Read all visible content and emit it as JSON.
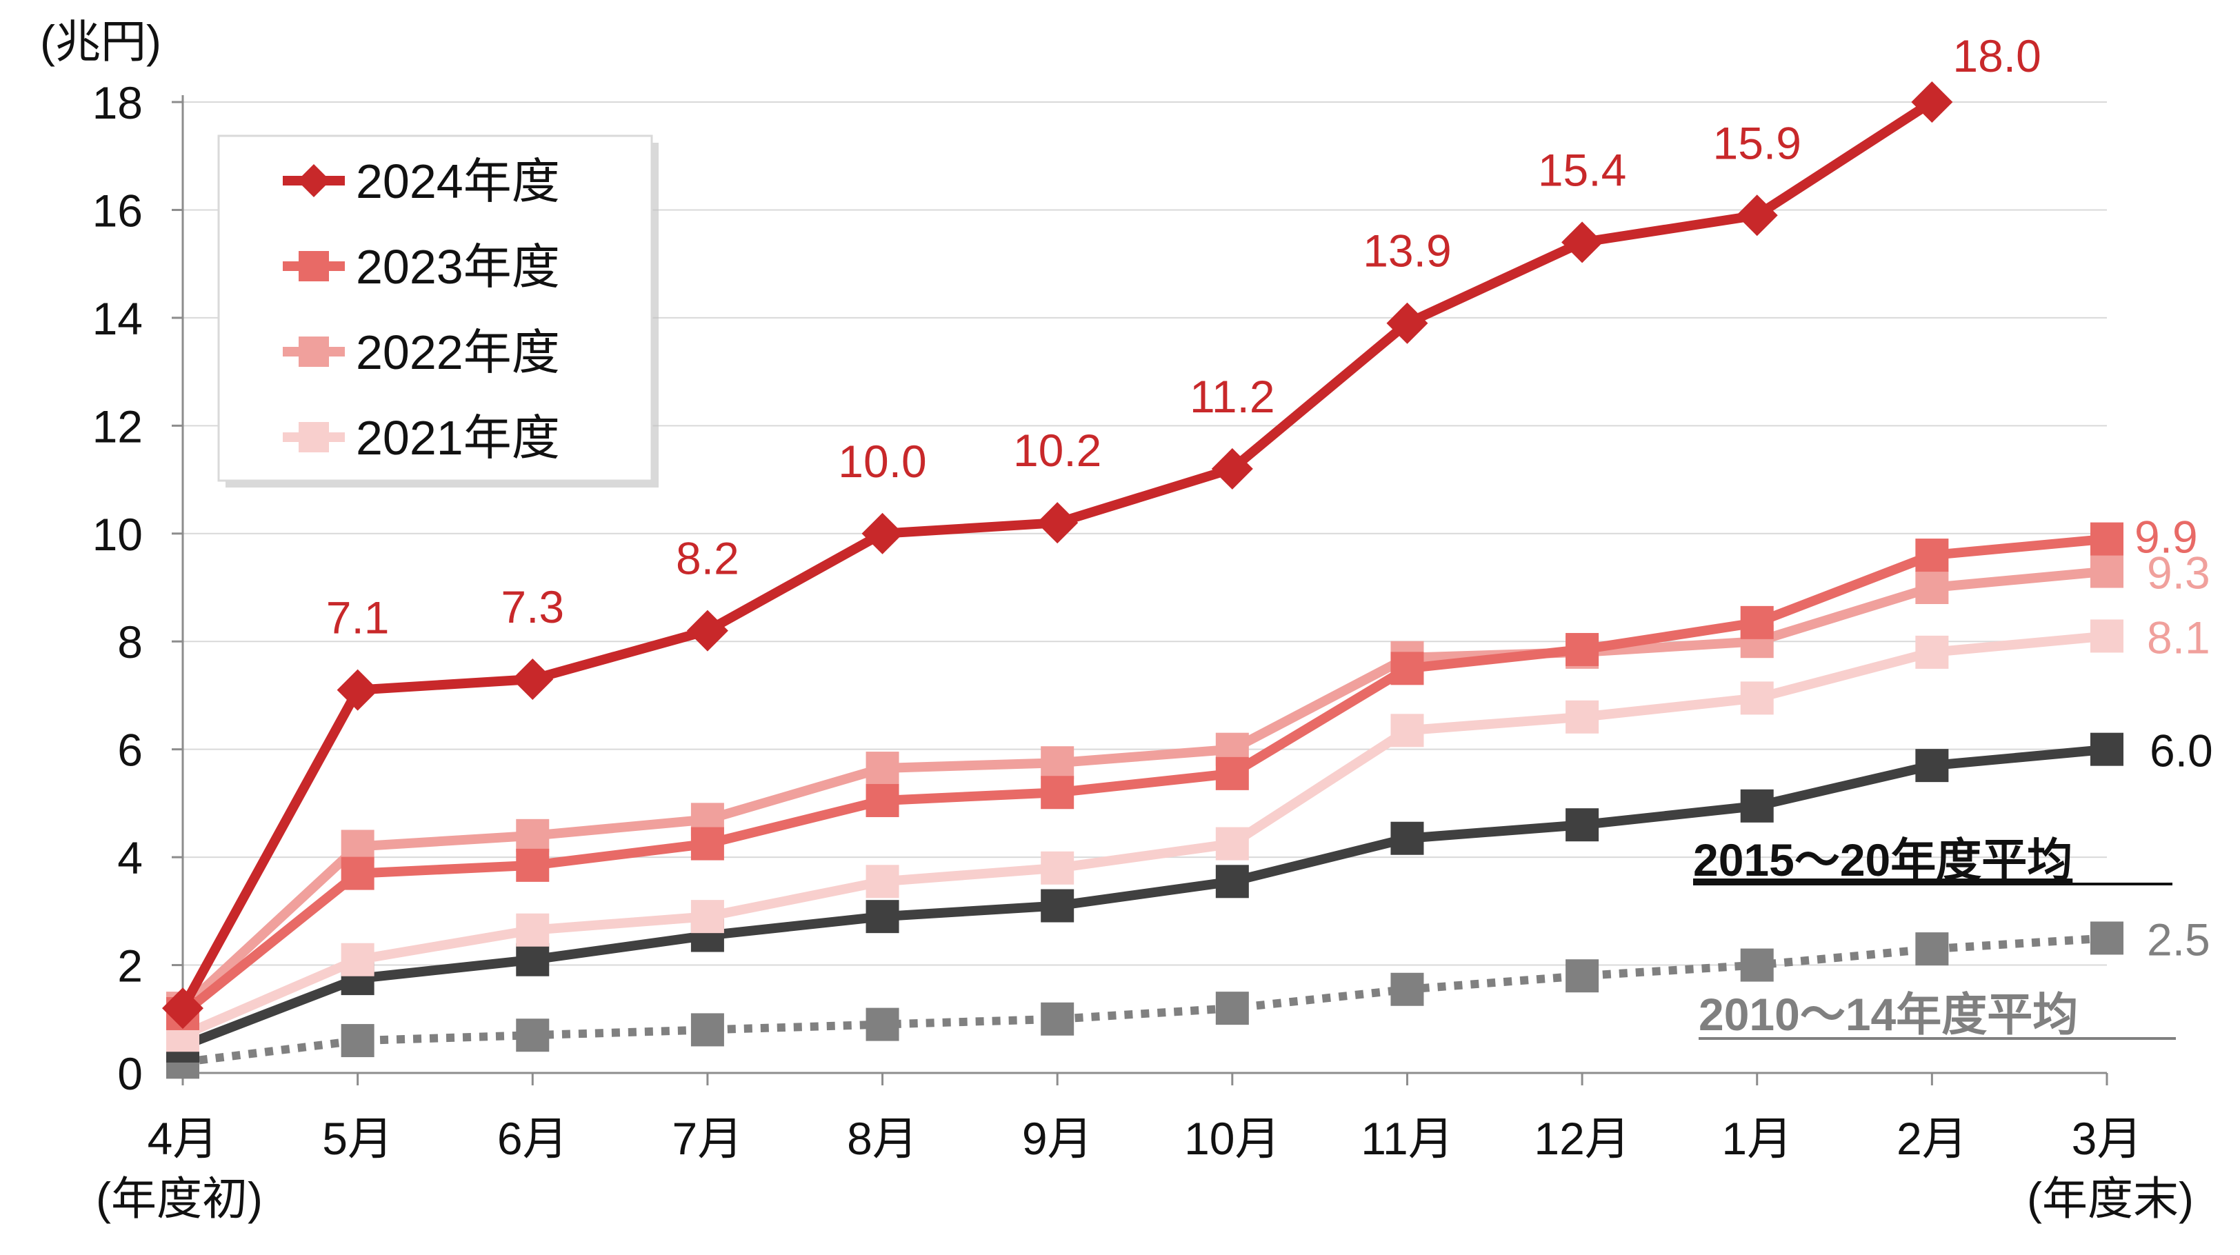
{
  "chart_data": {
    "type": "line",
    "y_unit_label": "(兆円)",
    "ylim": [
      0,
      18
    ],
    "y_ticks": [
      0,
      2,
      4,
      6,
      8,
      10,
      12,
      14,
      16,
      18
    ],
    "y_tick_labels": [
      "0",
      "2",
      "4",
      "6",
      "8",
      "10",
      "12",
      "14",
      "16",
      "18"
    ],
    "grid": true,
    "categories": [
      "4月",
      "5月",
      "6月",
      "7月",
      "8月",
      "9月",
      "10月",
      "11月",
      "12月",
      "1月",
      "2月",
      "3月"
    ],
    "category_sublabels": {
      "first": "(年度初)",
      "last": "(年度末)"
    },
    "legend_position": "top-left",
    "series": [
      {
        "name": "2024年度",
        "color": "#c8282a",
        "marker": "diamond",
        "values": [
          1.2,
          7.1,
          7.3,
          8.2,
          10.0,
          10.2,
          11.2,
          13.9,
          15.4,
          15.9,
          18.0,
          null
        ],
        "data_labels": [
          "",
          "7.1",
          "7.3",
          "8.2",
          "10.0",
          "10.2",
          "11.2",
          "13.9",
          "15.4",
          "15.9",
          "18.0",
          ""
        ]
      },
      {
        "name": "2023年度",
        "color": "#e86a66",
        "marker": "square",
        "values": [
          1.1,
          3.7,
          3.85,
          4.25,
          5.05,
          5.2,
          5.55,
          7.5,
          7.85,
          8.35,
          9.6,
          9.9
        ],
        "end_label": "9.9"
      },
      {
        "name": "2022年度",
        "color": "#f0a09c",
        "marker": "square",
        "values": [
          1.2,
          4.2,
          4.4,
          4.7,
          5.65,
          5.75,
          6.0,
          7.7,
          7.8,
          8.0,
          9.0,
          9.3
        ],
        "end_label": "9.3"
      },
      {
        "name": "2021年度",
        "color": "#f8cfcd",
        "marker": "square",
        "values": [
          0.7,
          2.1,
          2.65,
          2.9,
          3.55,
          3.8,
          4.25,
          6.35,
          6.6,
          6.95,
          7.8,
          8.1
        ],
        "end_label": "8.1"
      },
      {
        "name": "2015～20年度平均",
        "color": "#404040",
        "marker": "square",
        "line_style": "solid",
        "values": [
          0.5,
          1.75,
          2.1,
          2.55,
          2.9,
          3.1,
          3.55,
          4.35,
          4.6,
          4.95,
          5.7,
          6.0
        ],
        "end_label": "6.0"
      },
      {
        "name": "2010～14年度平均",
        "color": "#808080",
        "marker": "square",
        "line_style": "dotted",
        "values": [
          0.2,
          0.6,
          0.7,
          0.8,
          0.9,
          1.0,
          1.2,
          1.55,
          1.8,
          2.0,
          2.3,
          2.5
        ],
        "end_label": "2.5"
      }
    ],
    "annotations": {
      "avg_2015_20": "2015～20年度平均",
      "avg_2010_14": "2010～14年度平均"
    }
  }
}
